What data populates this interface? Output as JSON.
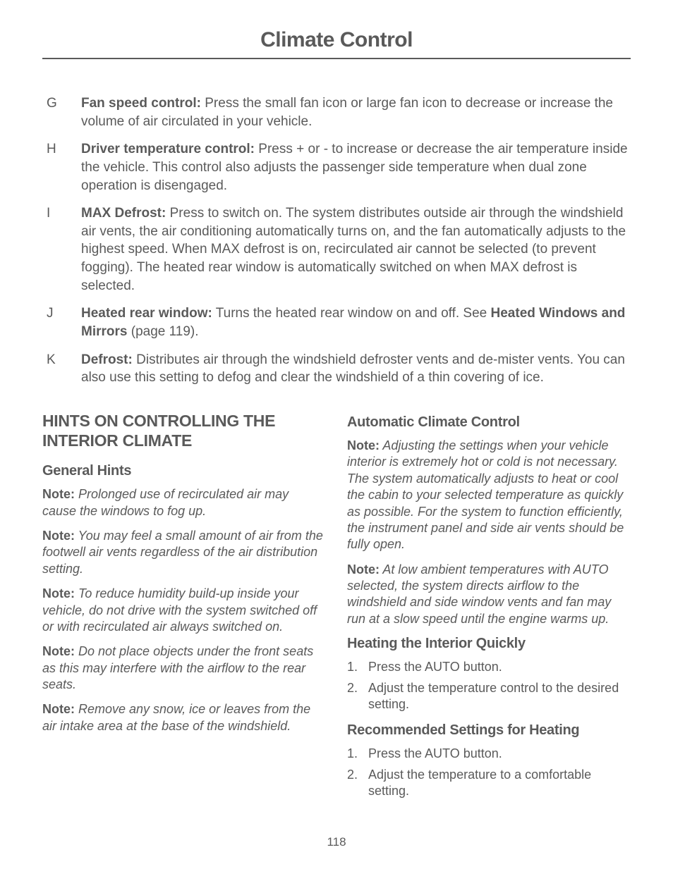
{
  "header": {
    "title": "Climate Control"
  },
  "definitions": [
    {
      "letter": "G",
      "label": "Fan speed control:",
      "text": " Press the small fan icon or large fan icon to decrease or increase the volume of air circulated in your vehicle."
    },
    {
      "letter": "H",
      "label": "Driver temperature control:",
      "text": " Press + or - to increase or decrease the air temperature inside the vehicle. This control also adjusts the passenger side temperature when dual zone operation is disengaged."
    },
    {
      "letter": "I",
      "label": "MAX Defrost:",
      "text": " Press to switch on. The system distributes outside air through the windshield air vents, the air conditioning automatically turns on, and the fan automatically adjusts to the highest speed. When MAX defrost is on, recirculated air cannot be selected (to prevent fogging). The heated rear window is automatically switched on when MAX defrost is selected."
    },
    {
      "letter": "J",
      "label": "Heated rear window:",
      "text": "  Turns the heated rear window on and off.  See ",
      "ref_label": "Heated Windows and Mirrors",
      "ref_text": " (page 119)."
    },
    {
      "letter": "K",
      "label": "Defrost:",
      "text": " Distributes air through the windshield defroster vents and de-mister vents. You can also use this setting to defog and clear the windshield of a thin covering of ice."
    }
  ],
  "left": {
    "h1": "HINTS ON CONTROLLING THE INTERIOR CLIMATE",
    "h2": "General Hints",
    "notes": [
      {
        "label": "Note:",
        "text": " Prolonged use of recirculated air may cause the windows to fog up."
      },
      {
        "label": "Note:",
        "text": " You may feel a small amount of air from the footwell air vents regardless of the air distribution setting."
      },
      {
        "label": "Note:",
        "text": " To reduce humidity build-up inside your vehicle, do not drive with the system switched off or with recirculated air always switched on."
      },
      {
        "label": "Note:",
        "text": " Do not place objects under the front seats as this may interfere with the airflow to the rear seats."
      },
      {
        "label": "Note:",
        "text": " Remove any snow, ice or leaves from the air intake area at the base of the windshield."
      }
    ]
  },
  "right": {
    "h2a": "Automatic Climate Control",
    "notes": [
      {
        "label": "Note:",
        "text": " Adjusting the settings when your vehicle interior is extremely hot or cold is not necessary. The system automatically adjusts to heat or cool the cabin to your selected temperature as quickly as possible. For the system to function efficiently, the instrument panel and side air vents should be fully open."
      },
      {
        "label": "Note:",
        "text": " At low ambient temperatures with AUTO selected, the system directs airflow to the windshield and side window vents and fan may run at a slow speed until the engine warms up."
      }
    ],
    "h2b": "Heating the Interior Quickly",
    "steps_b": [
      "Press the AUTO button.",
      "Adjust the temperature control to the desired setting."
    ],
    "h2c": "Recommended Settings for Heating",
    "steps_c": [
      "Press the AUTO button.",
      "Adjust the temperature to a comfortable setting."
    ]
  },
  "page": "118"
}
